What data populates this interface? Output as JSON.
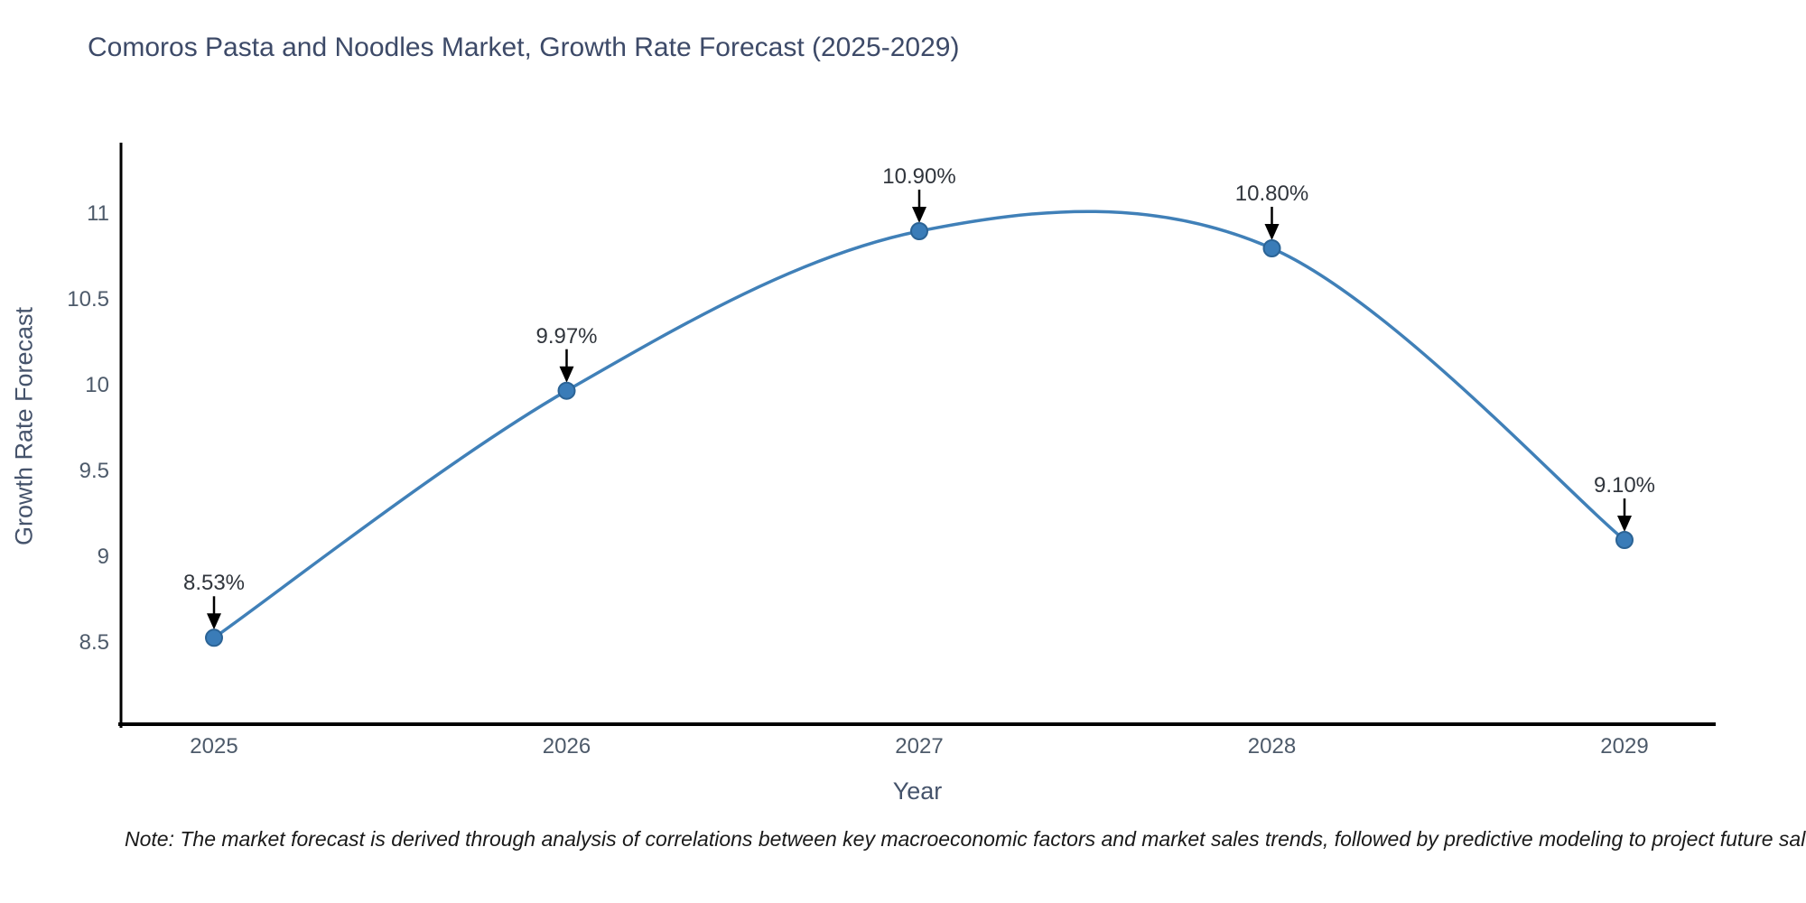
{
  "title": "Comoros Pasta and Noodles Market, Growth Rate Forecast (2025-2029)",
  "note": "Note: The market forecast is derived through analysis of correlations between key macroeconomic factors and market sales trends, followed by predictive modeling to project future sal",
  "chart_data": {
    "type": "line",
    "title": "Comoros Pasta and Noodles Market, Growth Rate Forecast (2025-2029)",
    "xlabel": "Year",
    "ylabel": "Growth Rate Forecast",
    "categories": [
      "2025",
      "2026",
      "2027",
      "2028",
      "2029"
    ],
    "values": [
      8.53,
      9.97,
      10.9,
      10.8,
      9.1
    ],
    "point_labels": [
      "8.53%",
      "9.97%",
      "10.90%",
      "10.80%",
      "9.10%"
    ],
    "yticks": [
      8.5,
      9,
      9.5,
      10,
      10.5,
      11
    ],
    "ytick_labels": [
      "8.5",
      "9",
      "9.5",
      "10",
      "10.5",
      "11"
    ],
    "ylim": [
      8.03,
      11.42
    ],
    "grid": false,
    "smooth": true,
    "legend": "none",
    "colors": {
      "line": "#4080b8",
      "marker_fill": "#3a7cb8",
      "marker_edge": "#2b6395",
      "annotation_arrow": "#000000",
      "axis_spine": "#000000",
      "title_text": "#3d4a68",
      "axis_title_text": "#45536b",
      "tick_text": "#4d5a6a",
      "annotation_text": "#30353c",
      "note_text": "#1a1a1a",
      "background": "#ffffff"
    }
  }
}
